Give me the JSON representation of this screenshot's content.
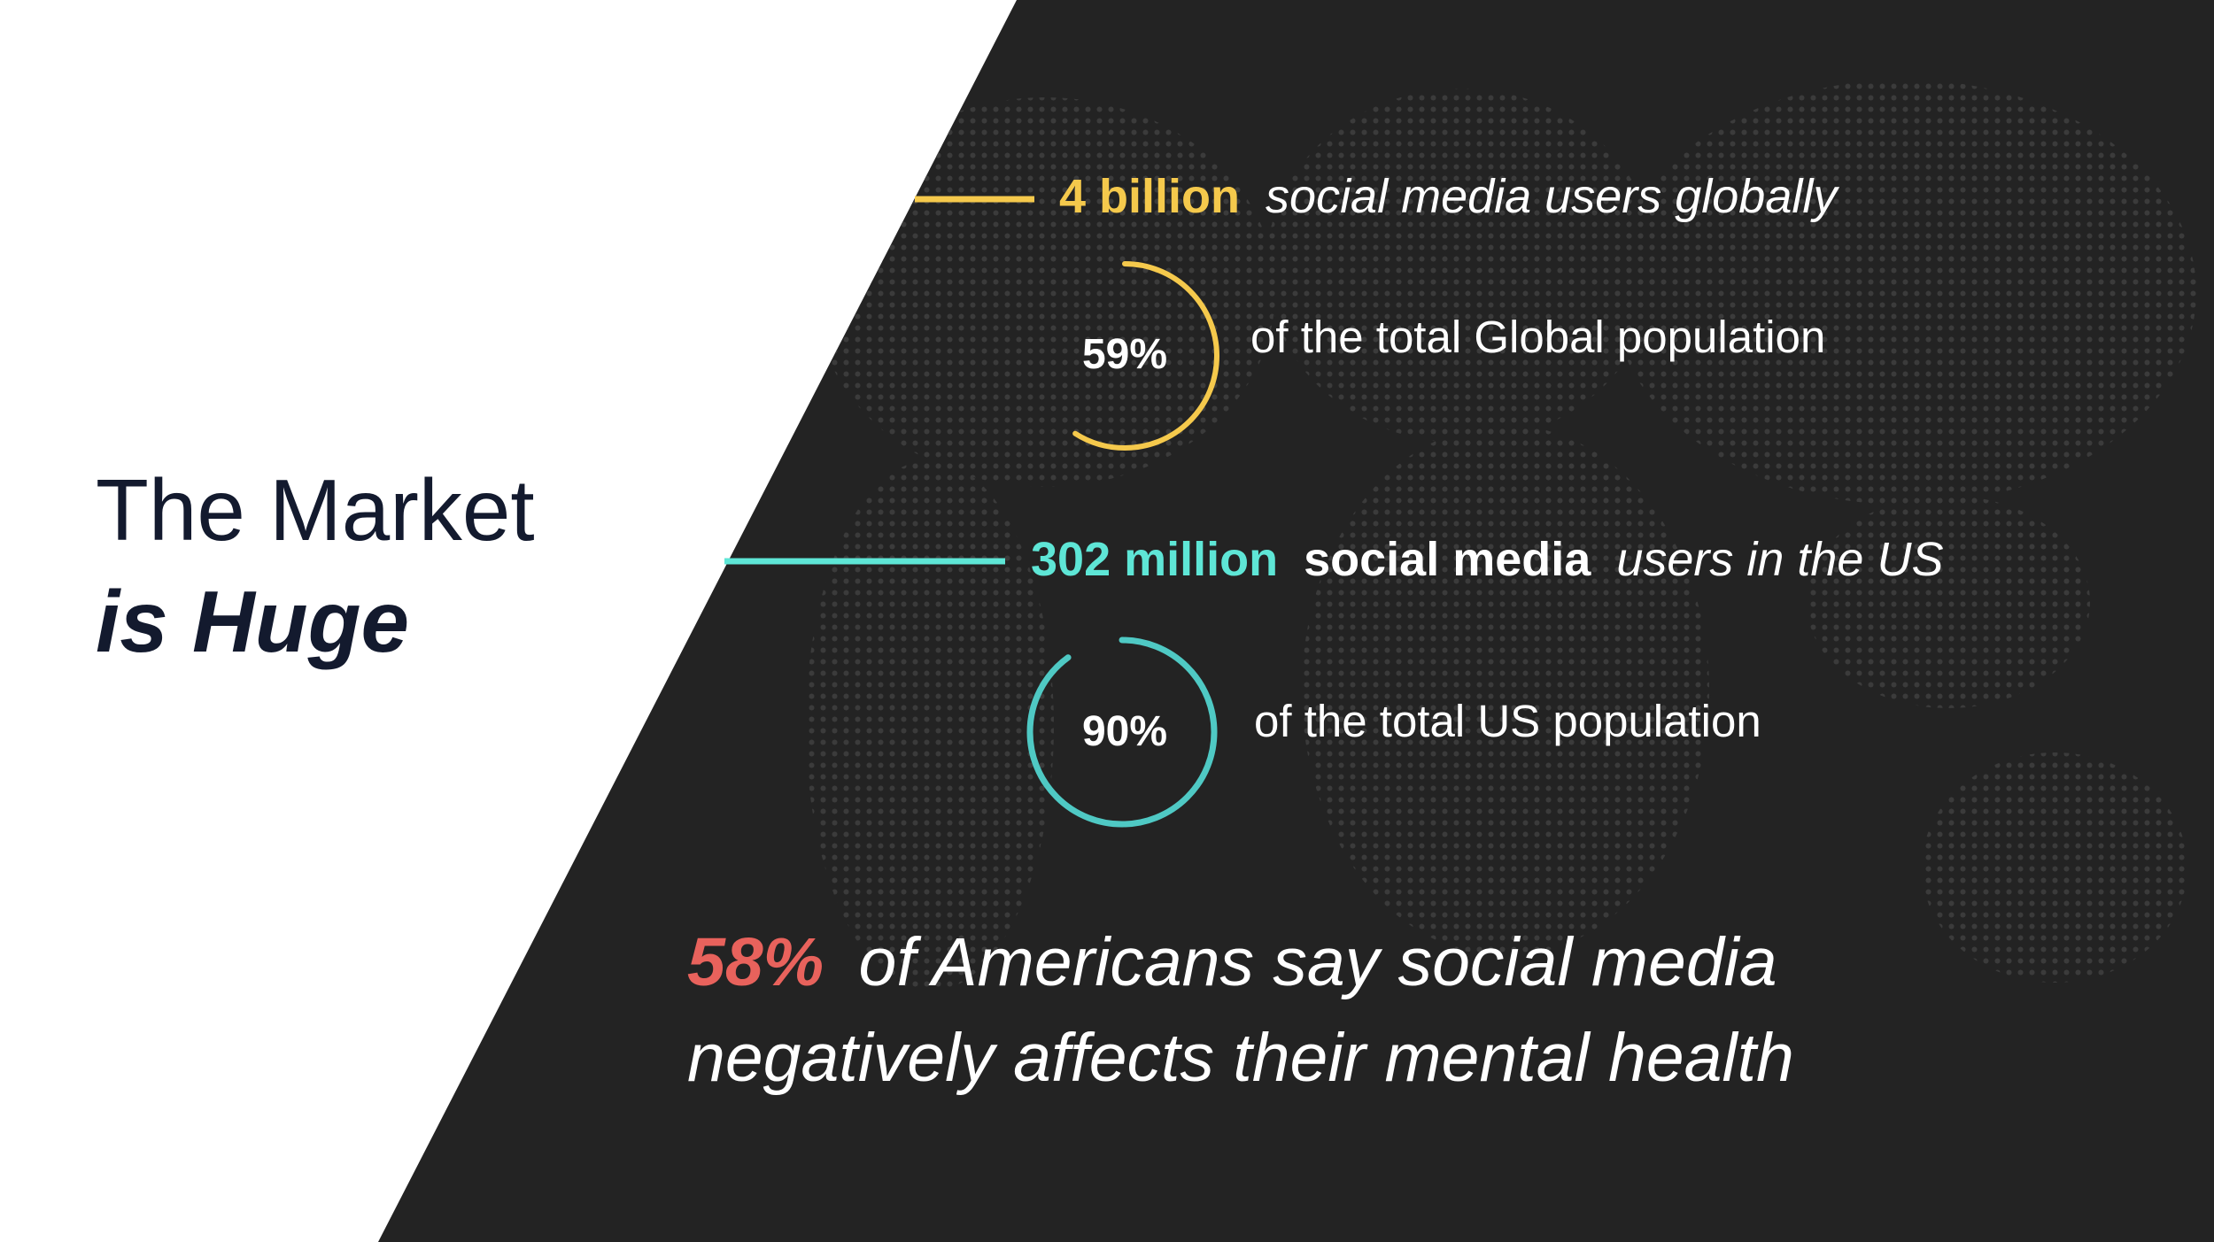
{
  "title": {
    "line1": "The Market",
    "line2": "is Huge"
  },
  "stats": [
    {
      "highlight": "4 billion",
      "text": "social media users globally",
      "percent": {
        "value": 59,
        "label": "59%"
      },
      "percent_text": "of the total Global population"
    },
    {
      "highlight": "302 million",
      "bold_text": "social media",
      "text": "users in the US",
      "percent": {
        "value": 90,
        "label": "90%"
      },
      "percent_text": "of the total US population"
    }
  ],
  "footnote": {
    "highlight": "58%",
    "line1": "of Americans say social media",
    "line2": "negatively affects their mental health"
  }
}
